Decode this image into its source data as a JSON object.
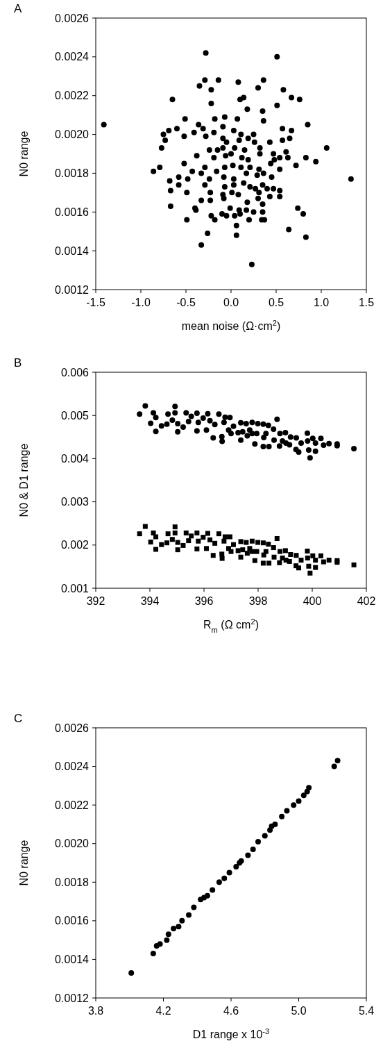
{
  "chart_data": [
    {
      "type": "scatter",
      "title": "A",
      "xlabel": "mean noise (Ω·cm$^{2}$)",
      "ylabel": "N0 range",
      "marker": "circle",
      "xlim": [
        -1.5,
        1.5
      ],
      "xticks": [
        -1.5,
        {
          "value": -1,
          "label": "-1.0"
        },
        -0.5,
        {
          "value": 0,
          "label": "0.0"
        },
        0.5,
        {
          "value": 1,
          "label": "1.0"
        },
        1.5
      ],
      "ylim": [
        0.0012,
        0.0026
      ],
      "yticks": [
        0.0012,
        0.0014,
        0.0016,
        0.0018,
        {
          "value": 0.002,
          "label": "0.0020"
        },
        0.0022,
        0.0024,
        0.0026
      ],
      "series": [
        {
          "color": "#000000",
          "x": [
            -1.41,
            -0.28,
            0.51,
            0.36,
            -0.29,
            -0.14,
            0.08,
            -0.35,
            0.3,
            0.58,
            -0.22,
            -0.65,
            0.14,
            0.1,
            -0.22,
            0.67,
            0.76,
            0.51,
            0.18,
            0.35,
            -0.18,
            -0.07,
            0.07,
            0.36,
            -0.51,
            -0.52,
            -0.69,
            -0.6,
            -0.75,
            -0.73,
            -0.77,
            -0.36,
            -0.31,
            -0.41,
            -0.28,
            -0.19,
            -0.09,
            0.03,
            0.11,
            0.25,
            0.57,
            0.67,
            0.65,
            0.57,
            0.85,
            0.43,
            -0.09,
            -0.05,
            0.09,
            0.19,
            0.26,
            -0.24,
            -0.15,
            -0.09,
            0.04,
            0.15,
            0.32,
            0.61,
            1.06,
            -0.38,
            -0.19,
            -0.06,
            0.0,
            0.12,
            0.19,
            0.32,
            0.47,
            0.54,
            0.63,
            0.83,
            0.94,
            0.48,
            -0.86,
            -0.79,
            -0.52,
            -0.43,
            -0.29,
            -0.33,
            -0.16,
            -0.07,
            0.02,
            0.11,
            0.21,
            0.31,
            0.44,
            0.54,
            0.72,
            1.33,
            -0.08,
            0.03,
            0.17,
            0.29,
            0.36,
            0.45,
            -0.68,
            -0.58,
            -0.48,
            -0.58,
            -0.29,
            -0.24,
            -0.07,
            0.03,
            0.14,
            0.21,
            0.27,
            0.35,
            0.4,
            0.47,
            0.54,
            -0.67,
            -0.49,
            -0.23,
            -0.09,
            0.01,
            0.08,
            0.31,
            0.43,
            0.54,
            -0.23,
            -0.33,
            -0.08,
            0.3,
            0.18,
            -0.67,
            0.35,
            -0.4,
            -0.39,
            -0.01,
            0.09,
            0.17,
            0.25,
            0.35,
            0.74,
            0.8,
            -0.1,
            0.1,
            -0.49,
            -0.22,
            -0.18,
            -0.05,
            0.04,
            0.2,
            0.34,
            0.37,
            0.06,
            0.64,
            -0.26,
            0.06,
            0.83,
            -0.33,
            0.23
          ],
          "values": [
            0.00205,
            0.00242,
            0.0024,
            0.00228,
            0.00228,
            0.00228,
            0.00227,
            0.00225,
            0.00224,
            0.00223,
            0.00223,
            0.00218,
            0.00219,
            0.00218,
            0.00216,
            0.00219,
            0.00218,
            0.00215,
            0.00213,
            0.00212,
            0.00208,
            0.00209,
            0.00208,
            0.00207,
            0.00208,
            0.00199,
            0.00202,
            0.00203,
            0.002,
            0.00197,
            0.00193,
            0.00205,
            0.00203,
            0.00201,
            0.00199,
            0.00201,
            0.00204,
            0.00202,
            0.002,
            0.002,
            0.00203,
            0.00202,
            0.00198,
            0.00197,
            0.00205,
            0.00196,
            0.00198,
            0.00196,
            0.00197,
            0.00198,
            0.00196,
            0.00192,
            0.00192,
            0.00193,
            0.00193,
            0.00192,
            0.00193,
            0.00191,
            0.00193,
            0.00189,
            0.00188,
            0.00189,
            0.0019,
            0.00188,
            0.00187,
            0.0019,
            0.0019,
            0.00188,
            0.00188,
            0.00188,
            0.00186,
            0.00187,
            0.00181,
            0.00183,
            0.00185,
            0.00181,
            0.00183,
            0.0018,
            0.00181,
            0.00183,
            0.00184,
            0.00183,
            0.00183,
            0.00182,
            0.00185,
            0.00182,
            0.00184,
            0.00177,
            0.00178,
            0.00177,
            0.0018,
            0.00179,
            0.0018,
            0.00178,
            0.00176,
            0.00178,
            0.00177,
            0.00174,
            0.00174,
            0.00177,
            0.00173,
            0.00174,
            0.00175,
            0.00173,
            0.00172,
            0.00174,
            0.00172,
            0.00172,
            0.00171,
            0.00171,
            0.0017,
            0.0017,
            0.00169,
            0.0017,
            0.00169,
            0.0017,
            0.00168,
            0.00168,
            0.00166,
            0.00166,
            0.00167,
            0.00167,
            0.00165,
            0.00163,
            0.00164,
            0.00162,
            0.00161,
            0.00162,
            0.00161,
            0.00161,
            0.0016,
            0.0016,
            0.00162,
            0.00159,
            0.00159,
            0.00159,
            0.00156,
            0.00158,
            0.00156,
            0.00158,
            0.00158,
            0.00156,
            0.00156,
            0.00156,
            0.00153,
            0.00151,
            0.00149,
            0.00148,
            0.00147,
            0.00143,
            0.00133
          ]
        }
      ]
    },
    {
      "type": "scatter",
      "title": "B",
      "xlabel": "R$_{m}$  (Ω cm$^{2}$)",
      "ylabel": "N0 & D1 range",
      "xlim": [
        392,
        402
      ],
      "xticks": [
        392,
        394,
        396,
        398,
        400,
        402
      ],
      "ylim": [
        0.001,
        0.006
      ],
      "yticks": [
        0.001,
        0.002,
        0.003,
        0.004,
        0.005,
        0.006
      ],
      "series": [
        {
          "color": "#000000",
          "marker": "circle",
          "x": [
            393.62,
            393.83,
            394.13,
            394.22,
            394.03,
            394.22,
            394.43,
            394.63,
            394.67,
            394.93,
            394.93,
            394.83,
            395.03,
            395.03,
            395.23,
            395.34,
            395.43,
            395.53,
            395.74,
            395.74,
            395.79,
            395.97,
            396.14,
            396.09,
            396.22,
            396.34,
            396.4,
            396.55,
            396.66,
            396.67,
            396.74,
            396.78,
            396.96,
            396.91,
            397.09,
            397.36,
            397.36,
            397.26,
            397.56,
            397.6,
            397.78,
            397.69,
            397.88,
            397.95,
            397.99,
            398.19,
            398.19,
            398.21,
            398.4,
            398.38,
            398.57,
            398.59,
            398.7,
            398.81,
            398.79,
            399.01,
            399.03,
            399.2,
            399.41,
            399.5,
            399.4,
            399.59,
            399.82,
            399.83,
            399.87,
            399.92,
            400.02,
            400.12,
            400.12,
            400.32,
            400.42,
            400.62,
            400.92,
            400.92,
            401.54,
            397.0,
            397.43,
            397.78,
            398.29,
            398.9,
            399.16
          ],
          "values": [
            0.00503,
            0.00522,
            0.00506,
            0.00495,
            0.00482,
            0.00463,
            0.00476,
            0.0048,
            0.00503,
            0.00521,
            0.00506,
            0.00489,
            0.00481,
            0.00462,
            0.00473,
            0.00506,
            0.00486,
            0.00498,
            0.00505,
            0.00464,
            0.00484,
            0.00494,
            0.00504,
            0.00466,
            0.00488,
            0.00448,
            0.00479,
            0.00503,
            0.00451,
            0.0044,
            0.00484,
            0.00496,
            0.00495,
            0.00466,
            0.00475,
            0.00483,
            0.00443,
            0.0046,
            0.00481,
            0.00453,
            0.00484,
            0.00466,
            0.00434,
            0.00458,
            0.00481,
            0.0048,
            0.00428,
            0.00449,
            0.00428,
            0.00477,
            0.00468,
            0.00443,
            0.00491,
            0.00458,
            0.00429,
            0.0046,
            0.00436,
            0.0045,
            0.00448,
            0.00415,
            0.00421,
            0.00436,
            0.00459,
            0.00441,
            0.0042,
            0.00402,
            0.00447,
            0.00436,
            0.00417,
            0.00447,
            0.00431,
            0.00435,
            0.00434,
            0.0043,
            0.00423,
            0.00458,
            0.00462,
            0.00458,
            0.00458,
            0.00441,
            0.00432
          ]
        },
        {
          "color": "#000000",
          "marker": "square",
          "x": [
            393.62,
            393.83,
            394.13,
            394.22,
            394.03,
            394.22,
            394.43,
            394.63,
            394.67,
            394.93,
            394.93,
            394.83,
            395.03,
            395.03,
            395.23,
            395.34,
            395.43,
            395.53,
            395.74,
            395.74,
            395.79,
            395.97,
            396.14,
            396.09,
            396.22,
            396.34,
            396.4,
            396.55,
            396.66,
            396.67,
            396.74,
            396.78,
            396.96,
            396.91,
            397.09,
            397.36,
            397.36,
            397.26,
            397.56,
            397.6,
            397.78,
            397.69,
            397.88,
            397.95,
            397.99,
            398.19,
            398.19,
            398.21,
            398.4,
            398.38,
            398.57,
            398.59,
            398.7,
            398.81,
            398.79,
            399.01,
            399.03,
            399.2,
            399.41,
            399.5,
            399.4,
            399.59,
            399.82,
            399.83,
            399.87,
            399.92,
            400.02,
            400.12,
            400.12,
            400.32,
            400.42,
            400.62,
            400.92,
            400.92,
            401.54,
            397.0,
            397.43,
            397.78,
            398.29,
            398.9,
            399.16
          ],
          "values": [
            0.00226,
            0.00243,
            0.00228,
            0.00219,
            0.00207,
            0.0019,
            0.00201,
            0.00205,
            0.00226,
            0.00242,
            0.00228,
            0.00213,
            0.00206,
            0.00189,
            0.00199,
            0.00228,
            0.0021,
            0.00221,
            0.00228,
            0.00191,
            0.00209,
            0.00218,
            0.00227,
            0.00192,
            0.00212,
            0.00176,
            0.00204,
            0.00226,
            0.00179,
            0.00169,
            0.00209,
            0.00219,
            0.00219,
            0.00192,
            0.00201,
            0.00208,
            0.00172,
            0.00187,
            0.00206,
            0.00181,
            0.00209,
            0.00192,
            0.00164,
            0.00185,
            0.00206,
            0.00205,
            0.00158,
            0.00177,
            0.00158,
            0.00202,
            0.00194,
            0.00172,
            0.00215,
            0.00185,
            0.00159,
            0.00187,
            0.00165,
            0.00178,
            0.00176,
            0.00147,
            0.00152,
            0.00165,
            0.00186,
            0.0017,
            0.00151,
            0.00135,
            0.00175,
            0.00165,
            0.00148,
            0.00175,
            0.00161,
            0.00165,
            0.00164,
            0.0016,
            0.00154,
            0.00185,
            0.00189,
            0.00185,
            0.00185,
            0.0017,
            0.00162
          ]
        }
      ]
    },
    {
      "type": "scatter",
      "title": "C",
      "xlabel": "D1 range x 10$^{-3}$",
      "ylabel": "N0 range",
      "marker": "circle",
      "xlim": [
        3.8,
        5.4
      ],
      "xticks": [
        3.8,
        4.2,
        4.6,
        {
          "value": 5,
          "label": "5.0"
        },
        5.4
      ],
      "ylim": [
        0.0012,
        0.0026
      ],
      "yticks": [
        0.0012,
        0.0014,
        0.0016,
        0.0018,
        {
          "value": 0.002,
          "label": "0.0020"
        },
        0.0022,
        0.0024,
        0.0026
      ],
      "series": [
        {
          "color": "#000000",
          "x": [
            4.01,
            4.14,
            4.16,
            4.18,
            4.22,
            4.23,
            4.26,
            4.29,
            4.31,
            4.35,
            4.38,
            4.42,
            4.44,
            4.46,
            4.49,
            4.53,
            4.56,
            4.59,
            4.63,
            4.65,
            4.66,
            4.7,
            4.73,
            4.76,
            4.8,
            4.83,
            4.84,
            4.86,
            4.9,
            4.93,
            4.97,
            5.0,
            5.03,
            5.05,
            5.06,
            5.21,
            5.23
          ],
          "values": [
            0.00133,
            0.00143,
            0.00147,
            0.00148,
            0.0015,
            0.00153,
            0.00156,
            0.00157,
            0.0016,
            0.00163,
            0.00167,
            0.00171,
            0.00172,
            0.00173,
            0.00176,
            0.0018,
            0.00182,
            0.00185,
            0.00188,
            0.0019,
            0.00191,
            0.00194,
            0.00197,
            0.00201,
            0.00204,
            0.00207,
            0.00209,
            0.0021,
            0.00214,
            0.00217,
            0.0022,
            0.00222,
            0.00225,
            0.00227,
            0.00229,
            0.0024,
            0.00243
          ]
        }
      ]
    }
  ]
}
